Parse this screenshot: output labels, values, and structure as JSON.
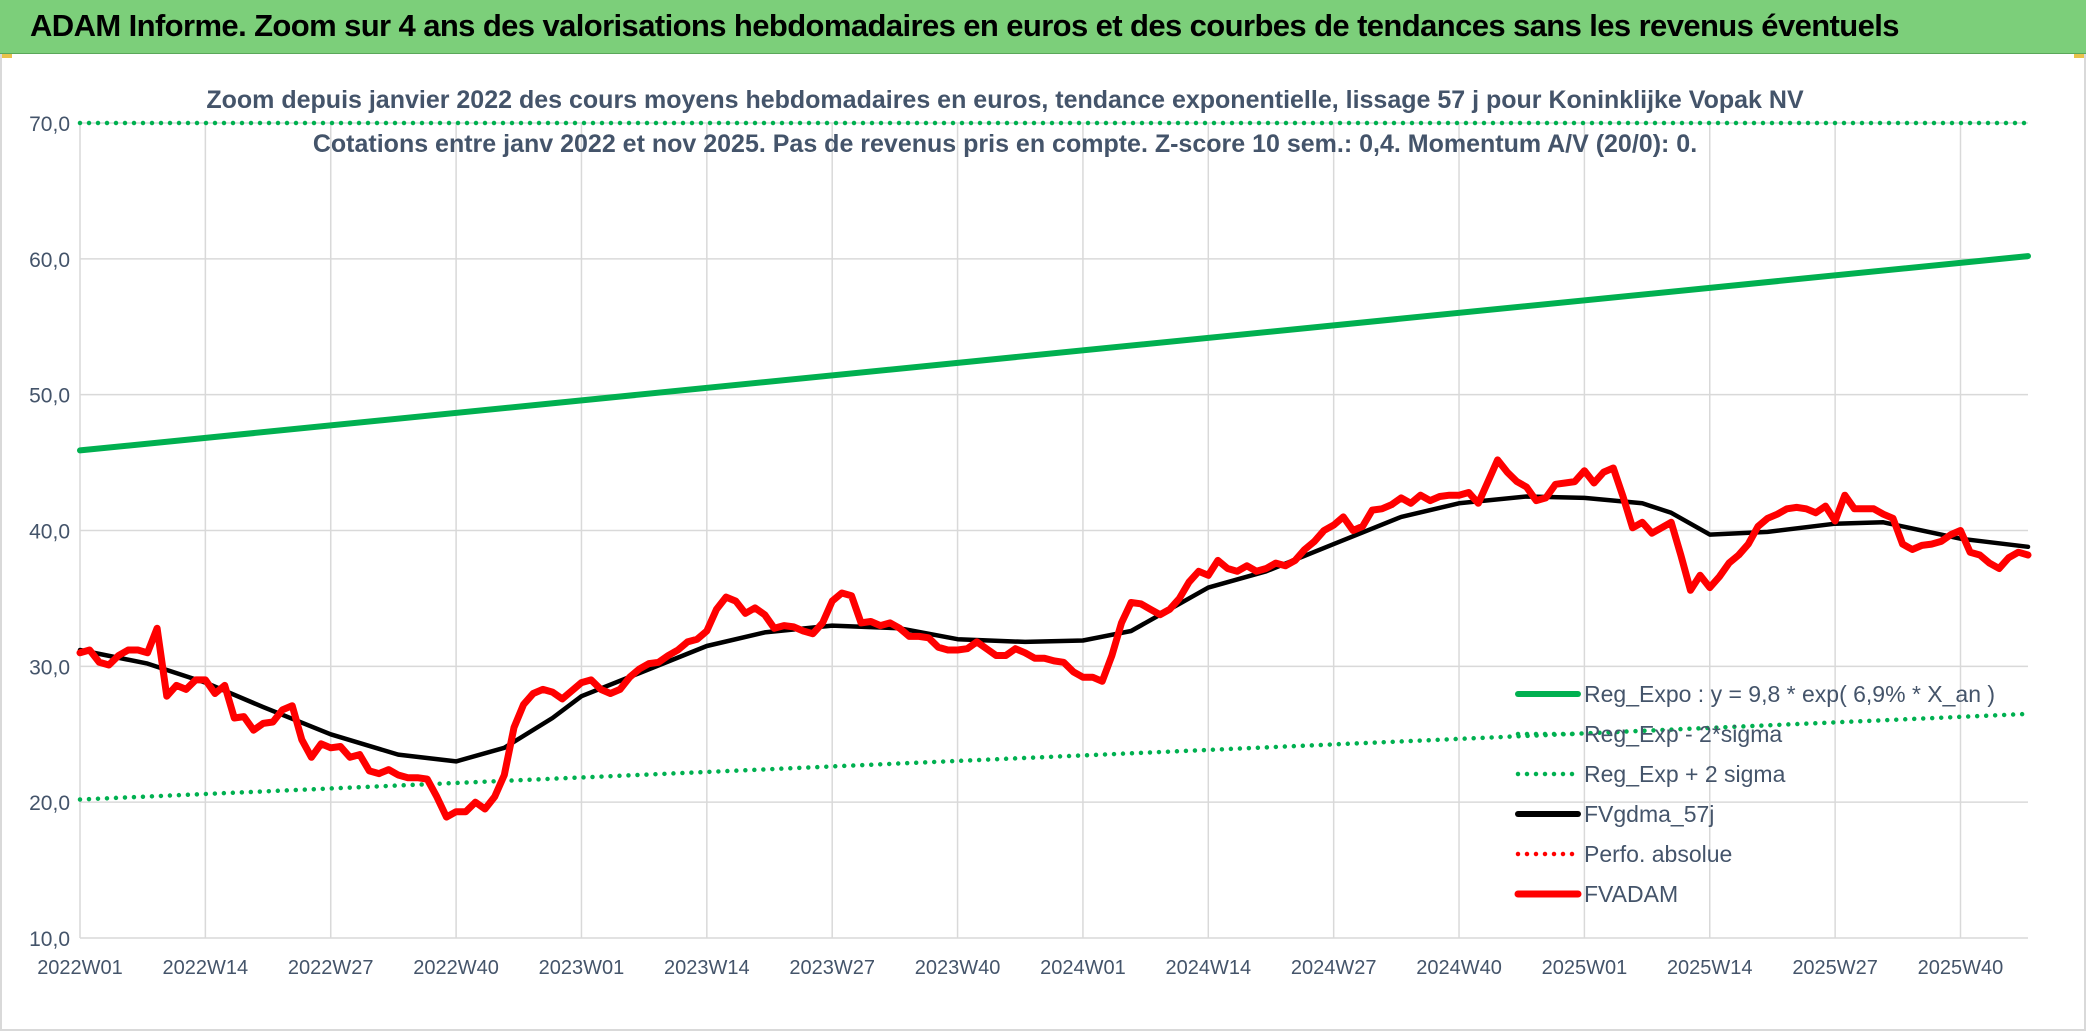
{
  "banner": {
    "title": "ADAM Informe. Zoom sur 4 ans des valorisations hebdomadaires en euros et des courbes de tendances sans les revenus éventuels"
  },
  "chart_data": {
    "type": "line",
    "title": "Zoom depuis janvier 2022 des cours moyens hebdomadaires en euros, tendance exponentielle, lissage 57 j pour Koninklijke Vopak NV",
    "subtitle": "Cotations entre janv 2022 et nov 2025. Pas de revenus pris en compte. Z-score 10 sem.: 0,4. Momentum A/V (20/0): 0.",
    "xlabel": "",
    "ylabel": "",
    "ylim": [
      10,
      70
    ],
    "yticks": [
      "10,0",
      "20,0",
      "30,0",
      "40,0",
      "50,0",
      "60,0",
      "70,0"
    ],
    "x_range": [
      "2022W01",
      "2025W47"
    ],
    "xticks": [
      "2022W01",
      "2022W14",
      "2022W27",
      "2022W40",
      "2023W01",
      "2023W14",
      "2023W27",
      "2023W40",
      "2024W01",
      "2024W14",
      "2024W27",
      "2024W40",
      "2025W01",
      "2025W14",
      "2025W27",
      "2025W40"
    ],
    "grid": true,
    "legend_position": "bottom-right",
    "series": [
      {
        "name": "Reg_Expo : y = 9,8 * exp( 6,9% * X_an )",
        "color": "#00b050",
        "style": "solid",
        "points": [
          [
            "2022W01",
            45.9
          ],
          [
            "2025W47",
            60.2
          ]
        ]
      },
      {
        "name": "Reg_Exp - 2*sigma",
        "color": "#00b050",
        "style": "dotted",
        "points": [
          [
            "2022W01",
            20.2
          ],
          [
            "2025W47",
            26.5
          ]
        ]
      },
      {
        "name": "Reg_Exp + 2 sigma",
        "color": "#00b050",
        "style": "dotted",
        "points": [
          [
            "2022W01",
            70.0
          ],
          [
            "2025W47",
            70.0
          ]
        ]
      },
      {
        "name": "FVgdma_57j",
        "color": "#000000",
        "style": "solid",
        "points": [
          [
            "2022W01",
            31.2
          ],
          [
            "2022W08",
            30.2
          ],
          [
            "2022W14",
            28.8
          ],
          [
            "2022W20",
            27.0
          ],
          [
            "2022W27",
            25.0
          ],
          [
            "2022W34",
            23.5
          ],
          [
            "2022W40",
            23.0
          ],
          [
            "2022W45",
            24.0
          ],
          [
            "2022W50",
            26.2
          ],
          [
            "2023W01",
            27.8
          ],
          [
            "2023W07",
            29.5
          ],
          [
            "2023W14",
            31.5
          ],
          [
            "2023W20",
            32.5
          ],
          [
            "2023W27",
            33.0
          ],
          [
            "2023W34",
            32.8
          ],
          [
            "2023W40",
            32.0
          ],
          [
            "2023W47",
            31.8
          ],
          [
            "2024W01",
            31.9
          ],
          [
            "2024W06",
            32.6
          ],
          [
            "2024W10",
            34.2
          ],
          [
            "2024W14",
            35.8
          ],
          [
            "2024W20",
            37.0
          ],
          [
            "2024W27",
            39.0
          ],
          [
            "2024W34",
            41.0
          ],
          [
            "2024W40",
            42.0
          ],
          [
            "2024W47",
            42.5
          ],
          [
            "2025W01",
            42.4
          ],
          [
            "2025W07",
            42.0
          ],
          [
            "2025W10",
            41.3
          ],
          [
            "2025W14",
            39.7
          ],
          [
            "2025W20",
            39.9
          ],
          [
            "2025W27",
            40.5
          ],
          [
            "2025W32",
            40.6
          ],
          [
            "2025W40",
            39.4
          ],
          [
            "2025W47",
            38.8
          ]
        ]
      },
      {
        "name": "Perfo. absolue",
        "color": "#ff0000",
        "style": "dotted",
        "points": []
      },
      {
        "name": "FVADAM",
        "color": "#ff0000",
        "style": "solid",
        "points": [
          [
            "2022W01",
            31.0
          ],
          [
            "2022W02",
            31.2
          ],
          [
            "2022W03",
            30.3
          ],
          [
            "2022W04",
            30.1
          ],
          [
            "2022W05",
            30.8
          ],
          [
            "2022W06",
            31.2
          ],
          [
            "2022W07",
            31.2
          ],
          [
            "2022W08",
            31.0
          ],
          [
            "2022W09",
            32.8
          ],
          [
            "2022W10",
            27.8
          ],
          [
            "2022W11",
            28.6
          ],
          [
            "2022W12",
            28.3
          ],
          [
            "2022W13",
            29.0
          ],
          [
            "2022W14",
            29.0
          ],
          [
            "2022W15",
            28.0
          ],
          [
            "2022W16",
            28.6
          ],
          [
            "2022W17",
            26.2
          ],
          [
            "2022W18",
            26.3
          ],
          [
            "2022W19",
            25.3
          ],
          [
            "2022W20",
            25.8
          ],
          [
            "2022W21",
            25.9
          ],
          [
            "2022W22",
            26.8
          ],
          [
            "2022W23",
            27.1
          ],
          [
            "2022W24",
            24.6
          ],
          [
            "2022W25",
            23.3
          ],
          [
            "2022W26",
            24.3
          ],
          [
            "2022W27",
            24.0
          ],
          [
            "2022W28",
            24.1
          ],
          [
            "2022W29",
            23.3
          ],
          [
            "2022W30",
            23.5
          ],
          [
            "2022W31",
            22.3
          ],
          [
            "2022W32",
            22.1
          ],
          [
            "2022W33",
            22.4
          ],
          [
            "2022W34",
            22.0
          ],
          [
            "2022W35",
            21.8
          ],
          [
            "2022W36",
            21.8
          ],
          [
            "2022W37",
            21.7
          ],
          [
            "2022W38",
            20.4
          ],
          [
            "2022W39",
            18.9
          ],
          [
            "2022W40",
            19.3
          ],
          [
            "2022W41",
            19.3
          ],
          [
            "2022W42",
            20.0
          ],
          [
            "2022W43",
            19.5
          ],
          [
            "2022W44",
            20.4
          ],
          [
            "2022W45",
            22.0
          ],
          [
            "2022W46",
            25.5
          ],
          [
            "2022W47",
            27.2
          ],
          [
            "2022W48",
            28.0
          ],
          [
            "2022W49",
            28.3
          ],
          [
            "2022W50",
            28.1
          ],
          [
            "2022W51",
            27.6
          ],
          [
            "2022W52",
            28.2
          ],
          [
            "2023W01",
            28.8
          ],
          [
            "2023W02",
            29.0
          ],
          [
            "2023W03",
            28.3
          ],
          [
            "2023W04",
            28.0
          ],
          [
            "2023W05",
            28.3
          ],
          [
            "2023W06",
            29.2
          ],
          [
            "2023W07",
            29.8
          ],
          [
            "2023W08",
            30.2
          ],
          [
            "2023W09",
            30.3
          ],
          [
            "2023W10",
            30.8
          ],
          [
            "2023W11",
            31.2
          ],
          [
            "2023W12",
            31.8
          ],
          [
            "2023W13",
            32.0
          ],
          [
            "2023W14",
            32.6
          ],
          [
            "2023W15",
            34.2
          ],
          [
            "2023W16",
            35.1
          ],
          [
            "2023W17",
            34.8
          ],
          [
            "2023W18",
            33.9
          ],
          [
            "2023W19",
            34.3
          ],
          [
            "2023W20",
            33.8
          ],
          [
            "2023W21",
            32.8
          ],
          [
            "2023W22",
            33.0
          ],
          [
            "2023W23",
            32.9
          ],
          [
            "2023W24",
            32.6
          ],
          [
            "2023W25",
            32.4
          ],
          [
            "2023W26",
            33.2
          ],
          [
            "2023W27",
            34.8
          ],
          [
            "2023W28",
            35.4
          ],
          [
            "2023W29",
            35.2
          ],
          [
            "2023W30",
            33.2
          ],
          [
            "2023W31",
            33.3
          ],
          [
            "2023W32",
            33.0
          ],
          [
            "2023W33",
            33.2
          ],
          [
            "2023W34",
            32.8
          ],
          [
            "2023W35",
            32.2
          ],
          [
            "2023W36",
            32.2
          ],
          [
            "2023W37",
            32.1
          ],
          [
            "2023W38",
            31.4
          ],
          [
            "2023W39",
            31.2
          ],
          [
            "2023W40",
            31.2
          ],
          [
            "2023W41",
            31.3
          ],
          [
            "2023W42",
            31.8
          ],
          [
            "2023W43",
            31.3
          ],
          [
            "2023W44",
            30.8
          ],
          [
            "2023W45",
            30.8
          ],
          [
            "2023W46",
            31.3
          ],
          [
            "2023W47",
            31.0
          ],
          [
            "2023W48",
            30.6
          ],
          [
            "2023W49",
            30.6
          ],
          [
            "2023W50",
            30.4
          ],
          [
            "2023W51",
            30.3
          ],
          [
            "2023W52",
            29.6
          ],
          [
            "2024W01",
            29.2
          ],
          [
            "2024W02",
            29.2
          ],
          [
            "2024W03",
            28.9
          ],
          [
            "2024W04",
            30.8
          ],
          [
            "2024W05",
            33.2
          ],
          [
            "2024W06",
            34.7
          ],
          [
            "2024W07",
            34.6
          ],
          [
            "2024W08",
            34.2
          ],
          [
            "2024W09",
            33.8
          ],
          [
            "2024W10",
            34.2
          ],
          [
            "2024W11",
            35.0
          ],
          [
            "2024W12",
            36.2
          ],
          [
            "2024W13",
            37.0
          ],
          [
            "2024W14",
            36.7
          ],
          [
            "2024W15",
            37.8
          ],
          [
            "2024W16",
            37.2
          ],
          [
            "2024W17",
            37.0
          ],
          [
            "2024W18",
            37.4
          ],
          [
            "2024W19",
            37.0
          ],
          [
            "2024W20",
            37.2
          ],
          [
            "2024W21",
            37.6
          ],
          [
            "2024W22",
            37.4
          ],
          [
            "2024W23",
            37.8
          ],
          [
            "2024W24",
            38.6
          ],
          [
            "2024W25",
            39.2
          ],
          [
            "2024W26",
            40.0
          ],
          [
            "2024W27",
            40.4
          ],
          [
            "2024W28",
            41.0
          ],
          [
            "2024W29",
            40.0
          ],
          [
            "2024W30",
            40.3
          ],
          [
            "2024W31",
            41.5
          ],
          [
            "2024W32",
            41.6
          ],
          [
            "2024W33",
            41.9
          ],
          [
            "2024W34",
            42.4
          ],
          [
            "2024W35",
            42.0
          ],
          [
            "2024W36",
            42.6
          ],
          [
            "2024W37",
            42.2
          ],
          [
            "2024W38",
            42.5
          ],
          [
            "2024W39",
            42.6
          ],
          [
            "2024W40",
            42.6
          ],
          [
            "2024W41",
            42.8
          ],
          [
            "2024W42",
            42.0
          ],
          [
            "2024W43",
            43.6
          ],
          [
            "2024W44",
            45.2
          ],
          [
            "2024W45",
            44.3
          ],
          [
            "2024W46",
            43.6
          ],
          [
            "2024W47",
            43.2
          ],
          [
            "2024W48",
            42.2
          ],
          [
            "2024W49",
            42.4
          ],
          [
            "2024W50",
            43.4
          ],
          [
            "2024W51",
            43.5
          ],
          [
            "2024W52",
            43.6
          ],
          [
            "2025W01",
            44.4
          ],
          [
            "2025W02",
            43.5
          ],
          [
            "2025W03",
            44.3
          ],
          [
            "2025W04",
            44.6
          ],
          [
            "2025W05",
            42.5
          ],
          [
            "2025W06",
            40.2
          ],
          [
            "2025W07",
            40.6
          ],
          [
            "2025W08",
            39.8
          ],
          [
            "2025W09",
            40.2
          ],
          [
            "2025W10",
            40.6
          ],
          [
            "2025W11",
            38.2
          ],
          [
            "2025W12",
            35.6
          ],
          [
            "2025W13",
            36.7
          ],
          [
            "2025W14",
            35.8
          ],
          [
            "2025W15",
            36.6
          ],
          [
            "2025W16",
            37.6
          ],
          [
            "2025W17",
            38.2
          ],
          [
            "2025W18",
            39.0
          ],
          [
            "2025W19",
            40.3
          ],
          [
            "2025W20",
            40.9
          ],
          [
            "2025W21",
            41.2
          ],
          [
            "2025W22",
            41.6
          ],
          [
            "2025W23",
            41.7
          ],
          [
            "2025W24",
            41.6
          ],
          [
            "2025W25",
            41.3
          ],
          [
            "2025W26",
            41.8
          ],
          [
            "2025W27",
            40.7
          ],
          [
            "2025W28",
            42.6
          ],
          [
            "2025W29",
            41.6
          ],
          [
            "2025W30",
            41.6
          ],
          [
            "2025W31",
            41.6
          ],
          [
            "2025W32",
            41.2
          ],
          [
            "2025W33",
            40.9
          ],
          [
            "2025W34",
            39.0
          ],
          [
            "2025W35",
            38.6
          ],
          [
            "2025W36",
            38.9
          ],
          [
            "2025W37",
            39.0
          ],
          [
            "2025W38",
            39.2
          ],
          [
            "2025W39",
            39.7
          ],
          [
            "2025W40",
            40.0
          ],
          [
            "2025W41",
            38.4
          ],
          [
            "2025W42",
            38.2
          ],
          [
            "2025W43",
            37.6
          ],
          [
            "2025W44",
            37.2
          ],
          [
            "2025W45",
            38.0
          ],
          [
            "2025W46",
            38.4
          ],
          [
            "2025W47",
            38.2
          ]
        ]
      }
    ]
  }
}
